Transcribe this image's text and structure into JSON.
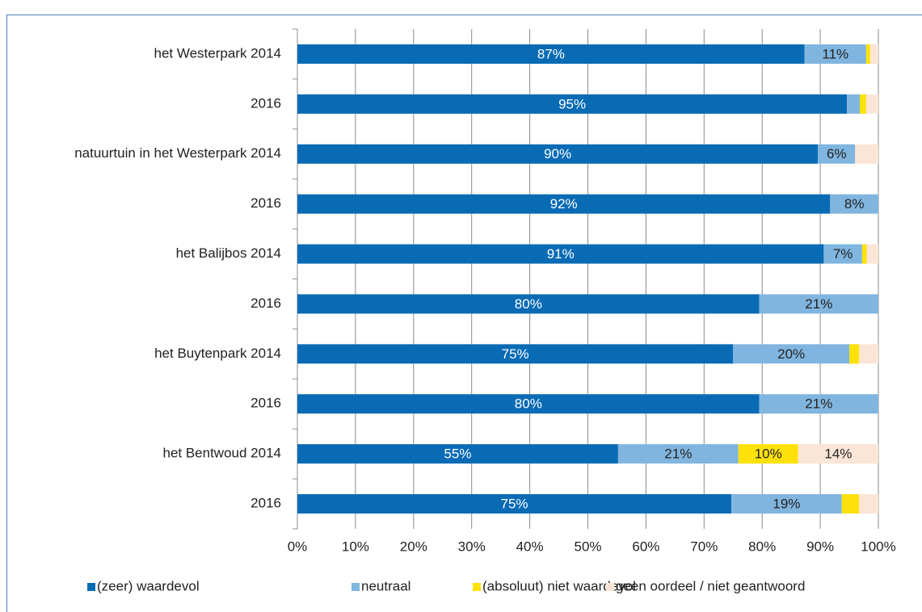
{
  "chart_data": {
    "type": "stacked-bar-horizontal",
    "categories": [
      "het Westerpark 2014",
      "2016",
      "natuurtuin in het Westerpark 2014",
      "2016",
      "het Balijbos 2014",
      "2016",
      "het Buytenpark 2014",
      "2016",
      "het Bentwoud 2014",
      "2016"
    ],
    "series": [
      {
        "name": "(zeer) waardevol",
        "color": "#0a6bb5",
        "label_color": "#ffffff",
        "values": [
          87.3,
          94.6,
          89.6,
          91.7,
          90.6,
          79.5,
          75.0,
          79.5,
          55.2,
          74.7
        ],
        "value_labels": [
          "87%",
          "95%",
          "90%",
          "92%",
          "91%",
          "80%",
          "75%",
          "80%",
          "55%",
          "75%"
        ]
      },
      {
        "name": "neutraal",
        "color": "#80b5df",
        "label_color": "#222222",
        "values": [
          10.6,
          2.2,
          6.4,
          8.3,
          6.6,
          20.5,
          20.0,
          20.5,
          20.7,
          19.0
        ],
        "value_labels": [
          "11%",
          null,
          "6%",
          "8%",
          "7%",
          "21%",
          "20%",
          "21%",
          "21%",
          "19%"
        ]
      },
      {
        "name": "(absoluut) niet waardevol",
        "color": "#ffe10a",
        "label_color": "#222222",
        "values": [
          0.7,
          1.1,
          0,
          0,
          0.8,
          0,
          1.7,
          0,
          10.3,
          3.0
        ],
        "value_labels": [
          null,
          null,
          null,
          null,
          null,
          null,
          null,
          null,
          "10%",
          null
        ]
      },
      {
        "name": "geen oordeel / niet geantwoord",
        "color": "#fbe5d6",
        "label_color": "#222222",
        "values": [
          1.4,
          2.1,
          4.0,
          0,
          2.0,
          0,
          3.3,
          0,
          13.8,
          3.3
        ],
        "value_labels": [
          null,
          null,
          null,
          null,
          null,
          null,
          null,
          null,
          "14%",
          null
        ]
      }
    ],
    "xlim": [
      0,
      100
    ],
    "xticks": [
      {
        "value": 0,
        "label": "0%"
      },
      {
        "value": 10,
        "label": "10%"
      },
      {
        "value": 20,
        "label": "20%"
      },
      {
        "value": 30,
        "label": "30%"
      },
      {
        "value": 40,
        "label": "40%"
      },
      {
        "value": 50,
        "label": "50%"
      },
      {
        "value": 60,
        "label": "60%"
      },
      {
        "value": 70,
        "label": "70%"
      },
      {
        "value": 80,
        "label": "80%"
      },
      {
        "value": 90,
        "label": "90%"
      },
      {
        "value": 100,
        "label": "100%"
      }
    ],
    "grid": true,
    "legend": "bottom"
  }
}
